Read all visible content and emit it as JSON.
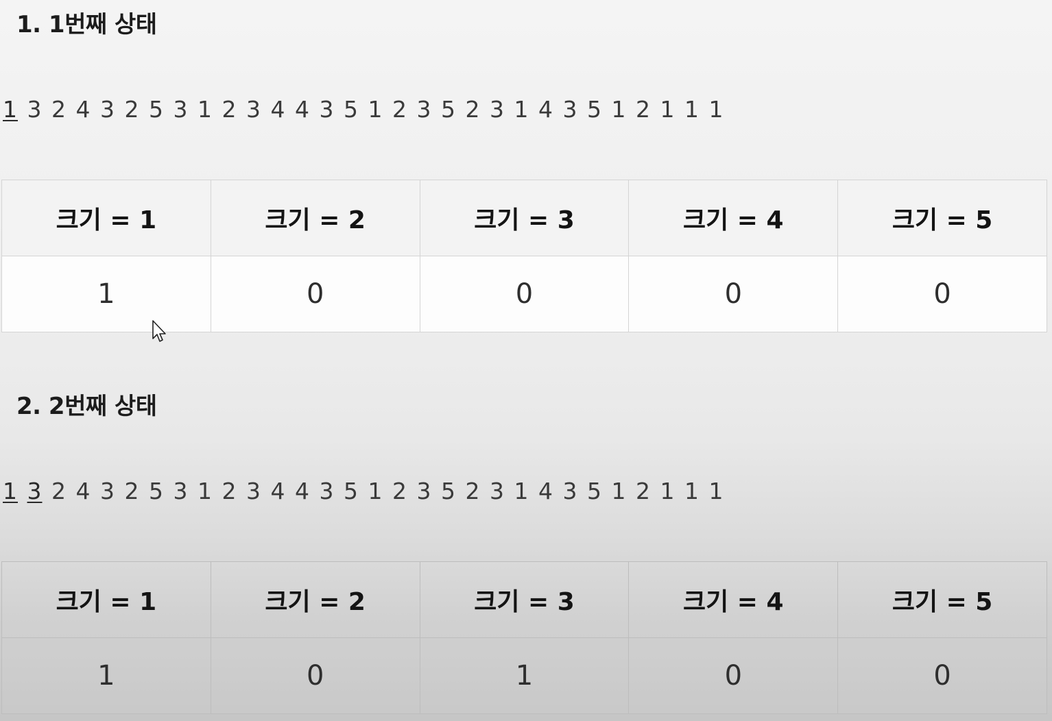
{
  "states": [
    {
      "title": "1. 1번째 상태",
      "sequence": [
        "1",
        "3",
        "2",
        "4",
        "3",
        "2",
        "5",
        "3",
        "1",
        "2",
        "3",
        "4",
        "4",
        "3",
        "5",
        "1",
        "2",
        "3",
        "5",
        "2",
        "3",
        "1",
        "4",
        "3",
        "5",
        "1",
        "2",
        "1",
        "1",
        "1"
      ],
      "marked_count": 1,
      "headers": [
        "크기 = 1",
        "크기 = 2",
        "크기 = 3",
        "크기 = 4",
        "크기 = 5"
      ],
      "values": [
        "1",
        "0",
        "0",
        "0",
        "0"
      ]
    },
    {
      "title": "2. 2번째 상태",
      "sequence": [
        "1",
        "3",
        "2",
        "4",
        "3",
        "2",
        "5",
        "3",
        "1",
        "2",
        "3",
        "4",
        "4",
        "3",
        "5",
        "1",
        "2",
        "3",
        "5",
        "2",
        "3",
        "1",
        "4",
        "3",
        "5",
        "1",
        "2",
        "1",
        "1",
        "1"
      ],
      "marked_count": 2,
      "headers": [
        "크기 = 1",
        "크기 = 2",
        "크기 = 3",
        "크기 = 4",
        "크기 = 5"
      ],
      "values": [
        "1",
        "0",
        "1",
        "0",
        "0"
      ]
    }
  ]
}
